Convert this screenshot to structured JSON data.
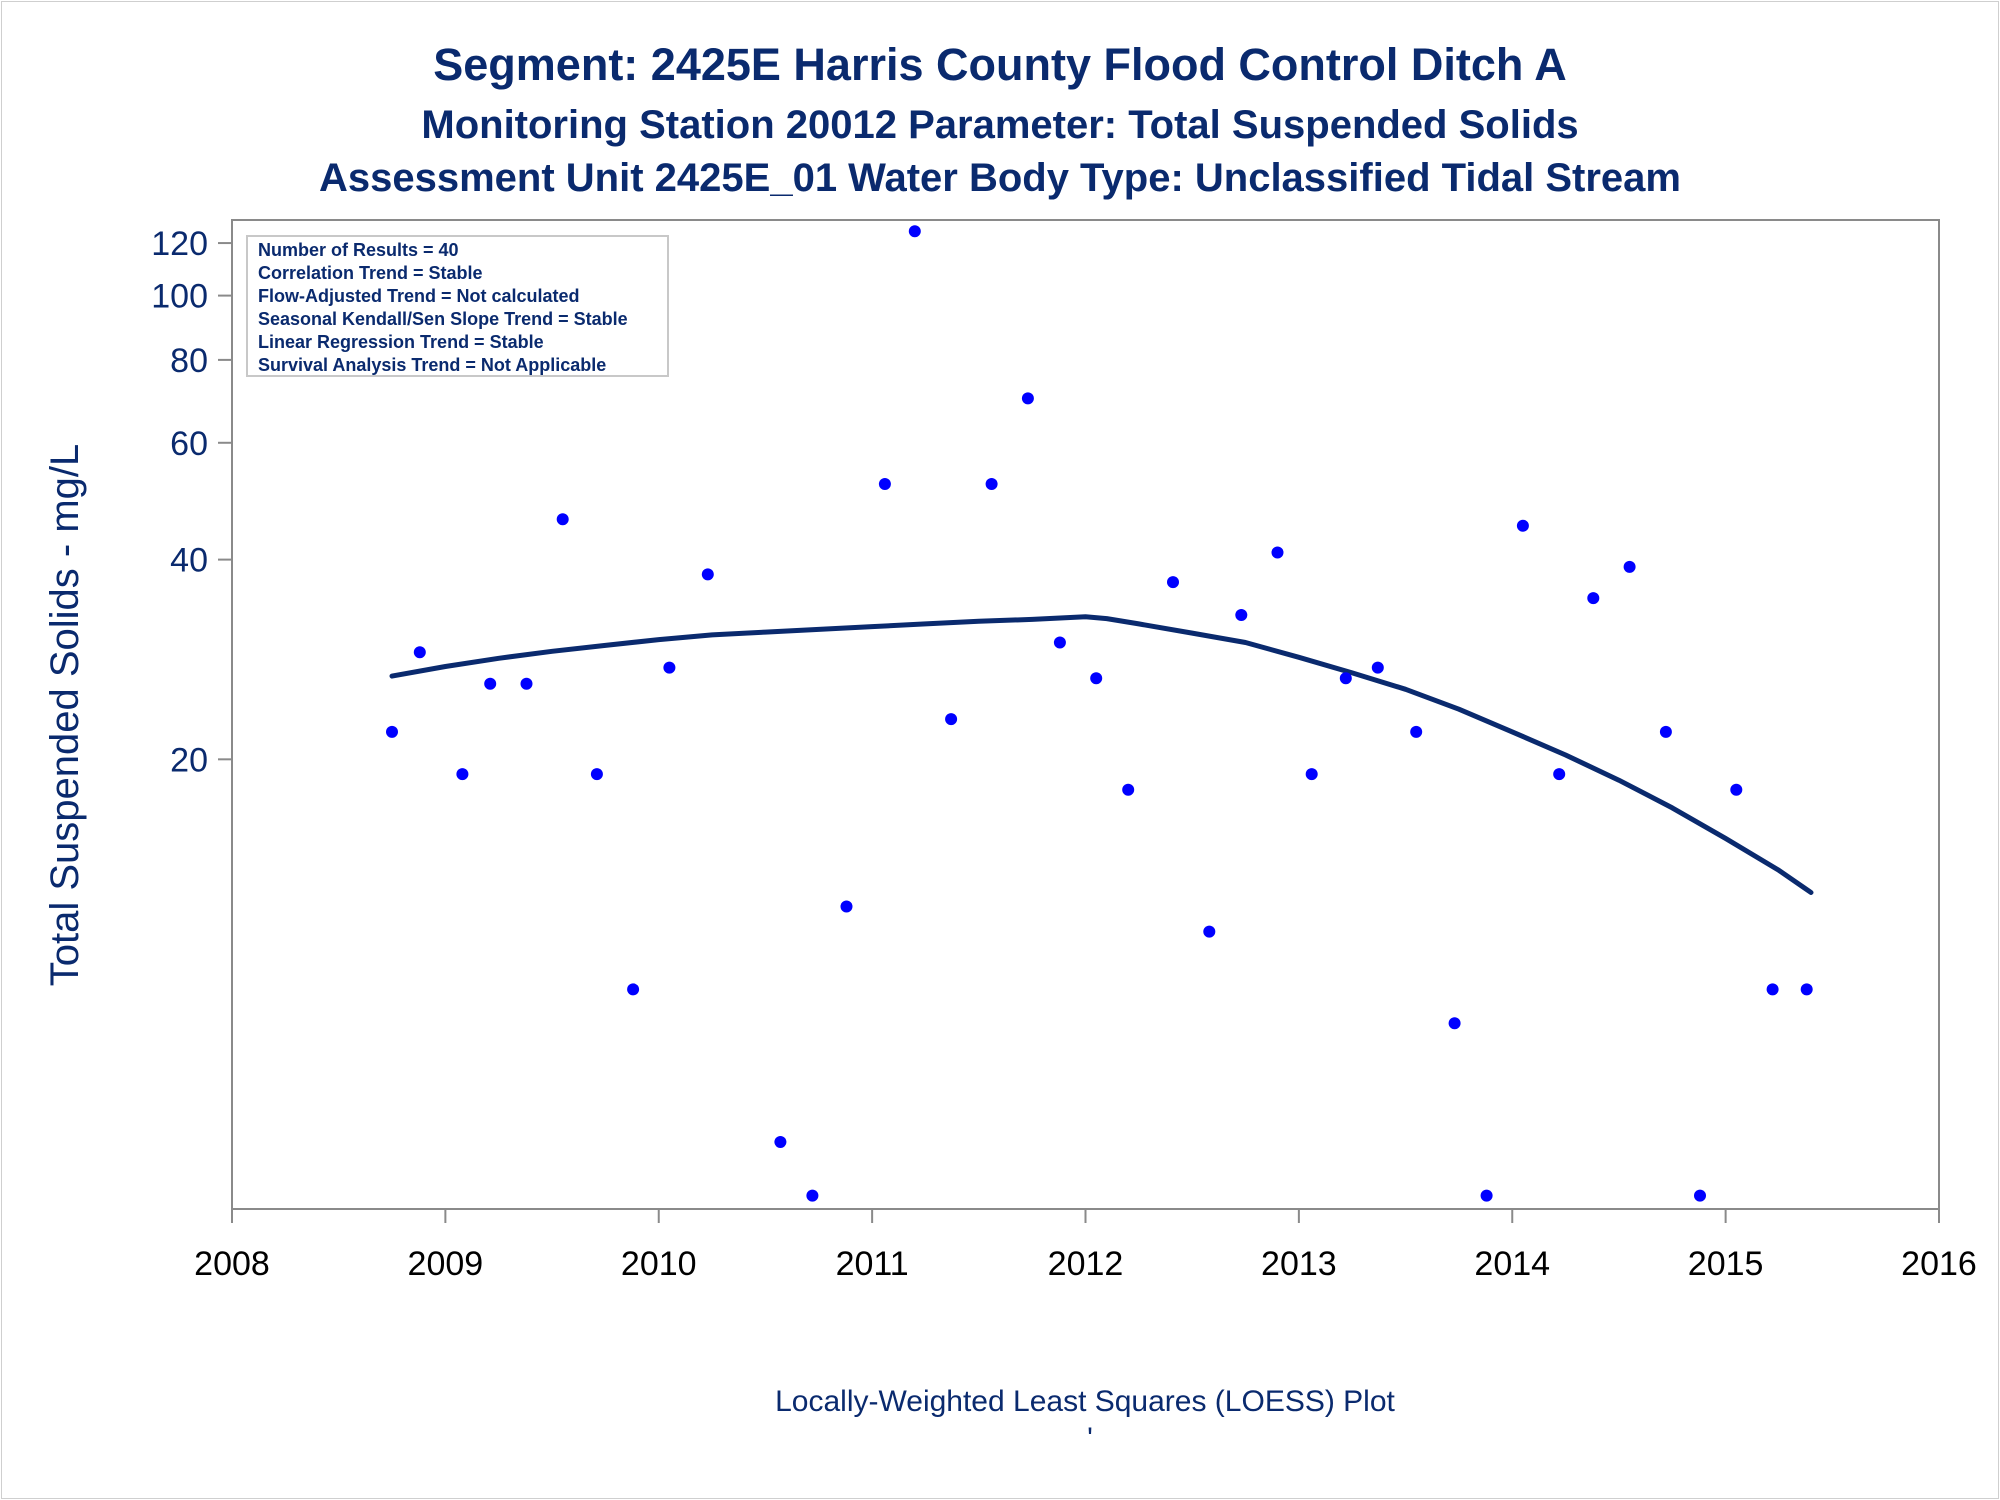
{
  "chart_data": {
    "type": "scatter",
    "title": "Segment: 2425E  Harris County Flood Control Ditch A",
    "subtitle": "Monitoring Station 20012 Parameter: Total Suspended Solids",
    "subtitle2": "Assessment Unit 2425E_01   Water Body Type: Unclassified Tidal Stream",
    "ylabel": "Total Suspended Solids - mg/L",
    "xlabel": "",
    "footnote": "Locally-Weighted Least Squares (LOESS) Plot",
    "footnote_mark": "'",
    "y_scale": "log",
    "xlim": [
      2008,
      2016
    ],
    "ylim": [
      4.2,
      130
    ],
    "x_ticks": [
      "2008",
      "2009",
      "2010",
      "2011",
      "2012",
      "2013",
      "2014",
      "2015",
      "2016"
    ],
    "y_ticks": [
      "20",
      "40",
      "60",
      "80",
      "100",
      "120"
    ],
    "point_color": "#0000ff",
    "line_color": "#0a2a6e",
    "stats_box": {
      "placement": "top-left",
      "lines": [
        "Number of Results = 40",
        "Correlation Trend = Stable",
        "Flow-Adjusted Trend = Not calculated",
        "Seasonal Kendall/Sen Slope Trend = Stable",
        "Linear Regression Trend = Stable",
        "Survival Analysis Trend = Not Applicable"
      ]
    },
    "series": [
      {
        "type": "scatter",
        "x": [
          2008.75,
          2008.88,
          2009.08,
          2009.21,
          2009.38,
          2009.55,
          2009.71,
          2009.88,
          2010.05,
          2010.23,
          2010.57,
          2010.72,
          2010.88,
          2011.06,
          2011.2,
          2011.37,
          2011.56,
          2011.73,
          2011.88,
          2012.05,
          2012.2,
          2012.41,
          2012.58,
          2012.73,
          2012.9,
          2013.06,
          2013.22,
          2013.37,
          2013.55,
          2013.73,
          2013.88,
          2014.05,
          2014.22,
          2014.38,
          2014.55,
          2014.72,
          2014.88,
          2015.05,
          2015.22,
          2015.38
        ],
        "y": [
          22,
          29,
          19,
          26,
          26,
          46,
          19,
          9,
          27.5,
          38,
          5.3,
          4.4,
          12,
          52,
          125,
          23,
          52,
          70,
          30,
          26.5,
          18,
          37,
          11,
          33,
          41,
          19,
          26.5,
          27.5,
          22,
          8,
          4.4,
          45,
          19,
          35,
          39,
          22,
          4.4,
          18,
          9,
          9
        ]
      },
      {
        "type": "line",
        "x": [
          2008.75,
          2009.0,
          2009.25,
          2009.5,
          2009.75,
          2010.0,
          2010.25,
          2010.5,
          2010.75,
          2011.0,
          2011.25,
          2011.5,
          2011.75,
          2012.0,
          2012.1,
          2012.25,
          2012.5,
          2012.75,
          2013.0,
          2013.25,
          2013.5,
          2013.75,
          2014.0,
          2014.25,
          2014.5,
          2014.75,
          2015.0,
          2015.25,
          2015.4
        ],
        "y": [
          26.7,
          27.6,
          28.4,
          29.1,
          29.7,
          30.3,
          30.8,
          31.1,
          31.4,
          31.7,
          32.0,
          32.3,
          32.5,
          32.8,
          32.6,
          32.0,
          31.0,
          30.0,
          28.5,
          27.0,
          25.5,
          23.8,
          22.0,
          20.3,
          18.6,
          16.9,
          15.2,
          13.6,
          12.6
        ]
      }
    ]
  }
}
